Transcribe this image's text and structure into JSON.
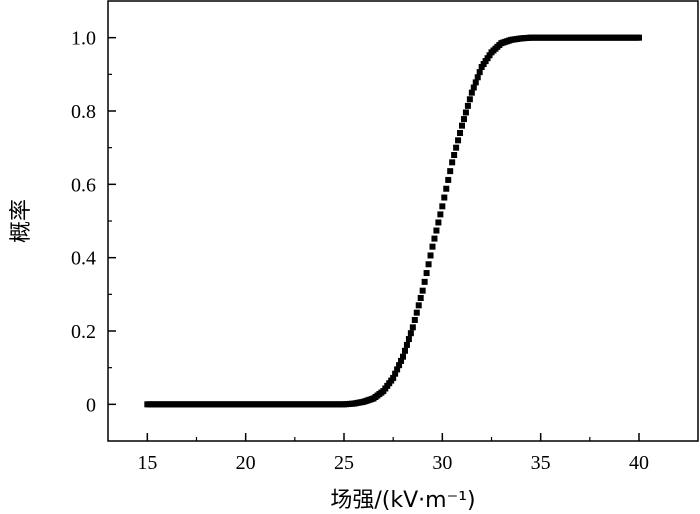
{
  "chart_data": {
    "type": "scatter",
    "title": "",
    "xlabel": "场强/(kV·m⁻¹)",
    "ylabel": "概率",
    "xlim": [
      13,
      43
    ],
    "ylim": [
      -0.1,
      1.1
    ],
    "xticks": [
      15,
      20,
      25,
      30,
      35,
      40
    ],
    "xtick_labels": [
      "15",
      "20",
      "25",
      "30",
      "35",
      "40"
    ],
    "yticks": [
      0,
      0.2,
      0.4,
      0.6,
      0.8,
      1.0
    ],
    "ytick_labels": [
      "0",
      "0.2",
      "0.4",
      "0.6",
      "0.8",
      "1.0"
    ],
    "grid": false,
    "legend": "none",
    "marker": "square",
    "color": "#000000",
    "x": [
      15.0,
      16.0,
      17.0,
      18.0,
      19.0,
      20.0,
      21.0,
      22.0,
      23.0,
      24.0,
      25.0,
      25.5,
      26.0,
      26.5,
      27.0,
      27.5,
      28.0,
      28.5,
      29.0,
      29.5,
      30.0,
      30.5,
      31.0,
      31.5,
      32.0,
      32.5,
      33.0,
      33.5,
      34.0,
      34.5,
      35.0,
      36.0,
      37.0,
      38.0,
      39.0,
      40.0
    ],
    "y": [
      0,
      0,
      0,
      0,
      0,
      0,
      0,
      0,
      0,
      0,
      0.0,
      0.002,
      0.007,
      0.016,
      0.036,
      0.072,
      0.13,
      0.21,
      0.31,
      0.43,
      0.54,
      0.66,
      0.76,
      0.85,
      0.92,
      0.96,
      0.985,
      0.994,
      0.998,
      1.0,
      1.0,
      1.0,
      1.0,
      1.0,
      1.0,
      1.0
    ]
  }
}
